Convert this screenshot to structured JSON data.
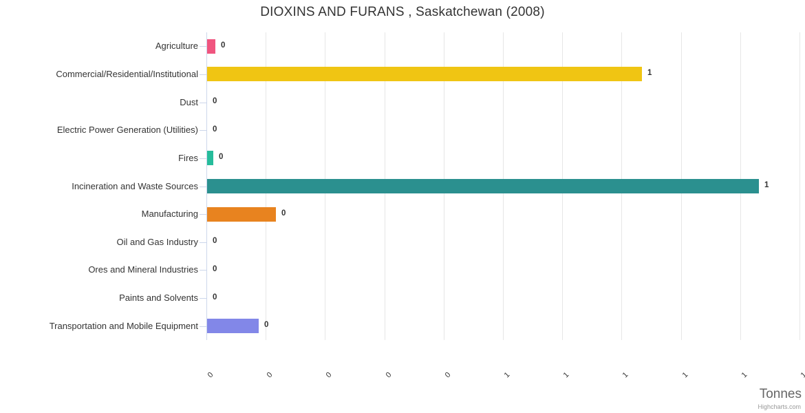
{
  "chart_data": {
    "type": "bar",
    "orientation": "horizontal",
    "title": "DIOXINS AND FURANS , Saskatchewan (2008)",
    "xlabel": "Tonnes",
    "credit": "Highcharts.com",
    "xlim": [
      0,
      1
    ],
    "grid": true,
    "x_tick_values": [
      0,
      0.1,
      0.2,
      0.3,
      0.4,
      0.5,
      0.6,
      0.7,
      0.8,
      0.9,
      1
    ],
    "x_tick_labels": [
      "0",
      "0",
      "0",
      "0",
      "0",
      "1",
      "1",
      "1",
      "1",
      "1",
      "1"
    ],
    "x_tick_rotation": -45,
    "categories": [
      "Agriculture",
      "Commercial/Residential/Institutional",
      "Dust",
      "Electric Power Generation (Utilities)",
      "Fires",
      "Incineration and Waste Sources",
      "Manufacturing",
      "Oil and Gas Industry",
      "Ores and Mineral Industries",
      "Paints and Solvents",
      "Transportation and Mobile Equipment"
    ],
    "values": [
      0.014,
      0.733,
      0,
      0,
      0.01,
      0.93,
      0.116,
      0,
      0,
      0,
      0.087
    ],
    "bar_labels": [
      "0",
      "1",
      "0",
      "0",
      "0",
      "1",
      "0",
      "0",
      "0",
      "0",
      "0"
    ],
    "bar_colors": [
      "#F0557F",
      "#F0C513",
      null,
      null,
      "#26BC9B",
      "#2B908F",
      "#E8831F",
      null,
      null,
      null,
      "#8287E8"
    ],
    "colors": {
      "grid": "#E6E6E6",
      "axis_line": "#CCD6EB",
      "title_text": "#333333",
      "label_text": "#333333",
      "axis_title_text": "#666666",
      "credit_text": "#999999"
    }
  }
}
